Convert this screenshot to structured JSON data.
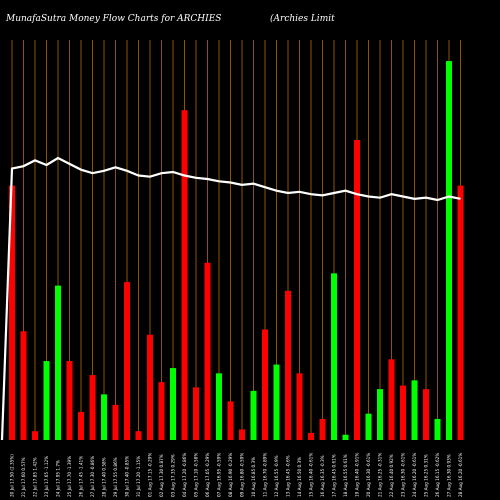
{
  "header": {
    "title_left": "MunafaSutra  Money Flow  Charts for ARCHIES",
    "title_right": "(Archies Limit"
  },
  "colors": {
    "background": "#000000",
    "gridline": "#cc7a00",
    "up_bar": "#00ff00",
    "down_bar": "#ff0000",
    "price_line": "#ffffff",
    "text": "#ffffff"
  },
  "chart_data": {
    "type": "bar",
    "title": "MunafaSutra  Money Flow  Charts for ARCHIES",
    "subtitle": "(Archies Limit",
    "categories": [
      "20 Jul 17.50 (2.35%)",
      "21 Jul 17.60 0.57%",
      "22 Jul 17.85 1.42%",
      "23 Jul 17.65 -1.12%",
      "24 Jul 17.95 1.7%",
      "25 Jul 17.70 -1.39%",
      "26 Jul 17.45 -1.41%",
      "27 Jul 17.30 -0.86%",
      "28 Jul 17.40 0.58%",
      "29 Jul 17.55 0.86%",
      "30 Jul 17.40 -0.85%",
      "31 Jul 17.20 -1.15%",
      "01 Aug 17.15 -0.29%",
      "02 Aug 17.30 0.87%",
      "03 Aug 17.35 0.29%",
      "04 Aug 17.20 -0.86%",
      "05 Aug 17.10 -0.58%",
      "06 Aug 17.05 -0.29%",
      "07 Aug 16.95 -0.59%",
      "08 Aug 16.90 -0.29%",
      "09 Aug 16.80 -0.59%",
      "10 Aug 16.85 0.3%",
      "11 Aug 16.70 -0.89%",
      "12 Aug 16.55 -0.9%",
      "13 Aug 16.45 -0.6%",
      "14 Aug 16.50 0.3%",
      "15 Aug 16.40 -0.61%",
      "16 Aug 16.35 -0.3%",
      "17 Aug 16.45 0.61%",
      "18 Aug 16.55 0.61%",
      "19 Aug 16.40 -0.91%",
      "20 Aug 16.30 -0.61%",
      "21 Aug 16.25 -0.31%",
      "22 Aug 16.40 0.92%",
      "23 Aug 16.30 -0.61%",
      "24 Aug 16.20 -0.61%",
      "25 Aug 16.25 0.31%",
      "26 Aug 16.15 -0.62%",
      "27 Aug 16.30 0.93%",
      "28 Aug 16.20 -0.61%"
    ],
    "money_flow": [
      {
        "value": 145,
        "dir": "down"
      },
      {
        "value": 62,
        "dir": "down"
      },
      {
        "value": 5,
        "dir": "down"
      },
      {
        "value": 45,
        "dir": "up"
      },
      {
        "value": 88,
        "dir": "up"
      },
      {
        "value": 45,
        "dir": "down"
      },
      {
        "value": 16,
        "dir": "down"
      },
      {
        "value": 37,
        "dir": "down"
      },
      {
        "value": 26,
        "dir": "up"
      },
      {
        "value": 20,
        "dir": "down"
      },
      {
        "value": 90,
        "dir": "down"
      },
      {
        "value": 5,
        "dir": "down"
      },
      {
        "value": 60,
        "dir": "down"
      },
      {
        "value": 33,
        "dir": "down"
      },
      {
        "value": 41,
        "dir": "up"
      },
      {
        "value": 188,
        "dir": "down"
      },
      {
        "value": 30,
        "dir": "down"
      },
      {
        "value": 101,
        "dir": "down"
      },
      {
        "value": 38,
        "dir": "up"
      },
      {
        "value": 22,
        "dir": "down"
      },
      {
        "value": 6,
        "dir": "down"
      },
      {
        "value": 28,
        "dir": "up"
      },
      {
        "value": 63,
        "dir": "down"
      },
      {
        "value": 43,
        "dir": "up"
      },
      {
        "value": 85,
        "dir": "down"
      },
      {
        "value": 38,
        "dir": "down"
      },
      {
        "value": 4,
        "dir": "down"
      },
      {
        "value": 12,
        "dir": "down"
      },
      {
        "value": 95,
        "dir": "up"
      },
      {
        "value": 3,
        "dir": "up"
      },
      {
        "value": 171,
        "dir": "down"
      },
      {
        "value": 15,
        "dir": "up"
      },
      {
        "value": 29,
        "dir": "up"
      },
      {
        "value": 46,
        "dir": "down"
      },
      {
        "value": 31,
        "dir": "down"
      },
      {
        "value": 34,
        "dir": "up"
      },
      {
        "value": 29,
        "dir": "down"
      },
      {
        "value": 12,
        "dir": "up"
      },
      {
        "value": 216,
        "dir": "up"
      },
      {
        "value": 145,
        "dir": "down"
      }
    ],
    "price_line": [
      17.5,
      17.6,
      17.85,
      17.65,
      17.95,
      17.7,
      17.45,
      17.3,
      17.4,
      17.55,
      17.4,
      17.2,
      17.15,
      17.3,
      17.35,
      17.2,
      17.1,
      17.05,
      16.95,
      16.9,
      16.8,
      16.85,
      16.7,
      16.55,
      16.45,
      16.5,
      16.4,
      16.35,
      16.45,
      16.55,
      16.4,
      16.3,
      16.25,
      16.4,
      16.3,
      16.2,
      16.25,
      16.15,
      16.3,
      16.2
    ],
    "price_line_start": 0,
    "grid": true,
    "legend": "none"
  }
}
